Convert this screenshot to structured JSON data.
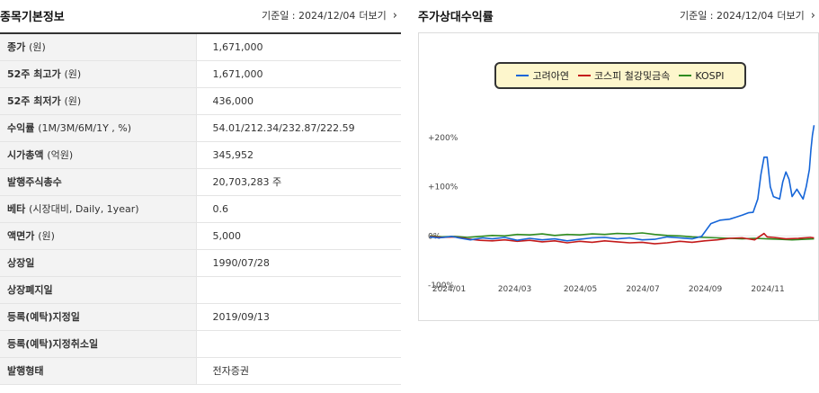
{
  "left": {
    "title": "종목기본정보",
    "ref_date_label": "기준일 : 2024/12/04",
    "more_label": "더보기",
    "rows": [
      {
        "label": "종가",
        "sub": "(원)",
        "value": "1,671,000"
      },
      {
        "label": "52주 최고가",
        "sub": "(원)",
        "value": "1,671,000"
      },
      {
        "label": "52주 최저가",
        "sub": "(원)",
        "value": "436,000"
      },
      {
        "label": "수익률",
        "sub": "(1M/3M/6M/1Y , %)",
        "value": "54.01/212.34/232.87/222.59"
      },
      {
        "label": "시가총액",
        "sub": "(억원)",
        "value": "345,952"
      },
      {
        "label": "발행주식총수",
        "sub": "",
        "value": "20,703,283 주"
      },
      {
        "label": "베타",
        "sub": "(시장대비, Daily, 1year)",
        "value": "0.6"
      },
      {
        "label": "액면가",
        "sub": "(원)",
        "value": "5,000"
      },
      {
        "label": "상장일",
        "sub": "",
        "value": "1990/07/28"
      },
      {
        "label": "상장폐지일",
        "sub": "",
        "value": ""
      },
      {
        "label": "등록(예탁)지정일",
        "sub": "",
        "value": "2019/09/13"
      },
      {
        "label": "등록(예탁)지정취소일",
        "sub": "",
        "value": ""
      },
      {
        "label": "발행형태",
        "sub": "",
        "value": "전자증권"
      }
    ]
  },
  "right": {
    "title": "주가상대수익률",
    "ref_date_label": "기준일 : 2024/12/04",
    "more_label": "더보기"
  },
  "chart_data": {
    "type": "line",
    "title": "",
    "xlabel": "",
    "ylabel": "",
    "ylim": [
      -100,
      220
    ],
    "y_ticks": [
      "+200%",
      "+100%",
      "0%",
      "-100%"
    ],
    "y_tick_values": [
      200,
      100,
      0,
      -100
    ],
    "x_ticks": [
      "2024/01",
      "2024/03",
      "2024/05",
      "2024/07",
      "2024/09",
      "2024/11"
    ],
    "x_tick_values": [
      0.6,
      2.7,
      4.8,
      6.8,
      8.8,
      10.8
    ],
    "x_range": [
      0,
      12.2
    ],
    "grid": false,
    "legend_position": "top-center",
    "series": [
      {
        "name": "고려아연",
        "color": "#1565d8",
        "points": [
          [
            0,
            -2
          ],
          [
            0.3,
            -4
          ],
          [
            0.7,
            -1
          ],
          [
            1.0,
            -5
          ],
          [
            1.3,
            -8
          ],
          [
            1.7,
            -4
          ],
          [
            2.0,
            -6
          ],
          [
            2.4,
            -3
          ],
          [
            2.8,
            -9
          ],
          [
            3.2,
            -5
          ],
          [
            3.6,
            -8
          ],
          [
            4.0,
            -6
          ],
          [
            4.4,
            -10
          ],
          [
            4.8,
            -7
          ],
          [
            5.2,
            -4
          ],
          [
            5.6,
            -3
          ],
          [
            6.0,
            -6
          ],
          [
            6.4,
            -4
          ],
          [
            6.8,
            -8
          ],
          [
            7.2,
            -7
          ],
          [
            7.6,
            -2
          ],
          [
            8.0,
            -4
          ],
          [
            8.4,
            -6
          ],
          [
            8.7,
            -1
          ],
          [
            9.0,
            25
          ],
          [
            9.3,
            32
          ],
          [
            9.6,
            34
          ],
          [
            9.8,
            38
          ],
          [
            10.0,
            42
          ],
          [
            10.2,
            47
          ],
          [
            10.35,
            48
          ],
          [
            10.5,
            75
          ],
          [
            10.6,
            125
          ],
          [
            10.7,
            160
          ],
          [
            10.8,
            160
          ],
          [
            10.9,
            100
          ],
          [
            11.0,
            80
          ],
          [
            11.2,
            75
          ],
          [
            11.3,
            110
          ],
          [
            11.4,
            130
          ],
          [
            11.5,
            115
          ],
          [
            11.6,
            80
          ],
          [
            11.75,
            95
          ],
          [
            11.85,
            85
          ],
          [
            11.95,
            75
          ],
          [
            12.05,
            100
          ],
          [
            12.15,
            135
          ],
          [
            12.2,
            175
          ],
          [
            12.25,
            205
          ],
          [
            12.3,
            225
          ]
        ]
      },
      {
        "name": "코스피 철강및금속",
        "color": "#c41a1a",
        "points": [
          [
            0,
            -1
          ],
          [
            0.4,
            -3
          ],
          [
            0.8,
            -2
          ],
          [
            1.2,
            -6
          ],
          [
            1.6,
            -9
          ],
          [
            2.0,
            -10
          ],
          [
            2.4,
            -8
          ],
          [
            2.8,
            -11
          ],
          [
            3.2,
            -9
          ],
          [
            3.6,
            -12
          ],
          [
            4.0,
            -10
          ],
          [
            4.4,
            -14
          ],
          [
            4.8,
            -11
          ],
          [
            5.2,
            -13
          ],
          [
            5.6,
            -10
          ],
          [
            6.0,
            -12
          ],
          [
            6.4,
            -14
          ],
          [
            6.8,
            -13
          ],
          [
            7.2,
            -16
          ],
          [
            7.6,
            -14
          ],
          [
            8.0,
            -11
          ],
          [
            8.4,
            -13
          ],
          [
            8.8,
            -10
          ],
          [
            9.2,
            -8
          ],
          [
            9.6,
            -5
          ],
          [
            10.0,
            -4
          ],
          [
            10.4,
            -8
          ],
          [
            10.7,
            5
          ],
          [
            10.8,
            -2
          ],
          [
            11.0,
            -3
          ],
          [
            11.4,
            -6
          ],
          [
            11.8,
            -5
          ],
          [
            12.2,
            -3
          ],
          [
            12.3,
            -4
          ]
        ]
      },
      {
        "name": "KOSPI",
        "color": "#2e8b1f",
        "points": [
          [
            0,
            0
          ],
          [
            0.4,
            -2
          ],
          [
            0.8,
            -1
          ],
          [
            1.2,
            -3
          ],
          [
            1.6,
            -1
          ],
          [
            2.0,
            1
          ],
          [
            2.4,
            0
          ],
          [
            2.8,
            3
          ],
          [
            3.2,
            2
          ],
          [
            3.6,
            4
          ],
          [
            4.0,
            1
          ],
          [
            4.4,
            3
          ],
          [
            4.8,
            2
          ],
          [
            5.2,
            4
          ],
          [
            5.6,
            3
          ],
          [
            6.0,
            5
          ],
          [
            6.4,
            4
          ],
          [
            6.8,
            6
          ],
          [
            7.2,
            3
          ],
          [
            7.6,
            1
          ],
          [
            8.0,
            0
          ],
          [
            8.4,
            -2
          ],
          [
            8.8,
            -3
          ],
          [
            9.2,
            -4
          ],
          [
            9.6,
            -5
          ],
          [
            10.0,
            -6
          ],
          [
            10.4,
            -5
          ],
          [
            10.8,
            -6
          ],
          [
            11.2,
            -7
          ],
          [
            11.6,
            -8
          ],
          [
            12.0,
            -7
          ],
          [
            12.3,
            -6
          ]
        ]
      }
    ]
  }
}
